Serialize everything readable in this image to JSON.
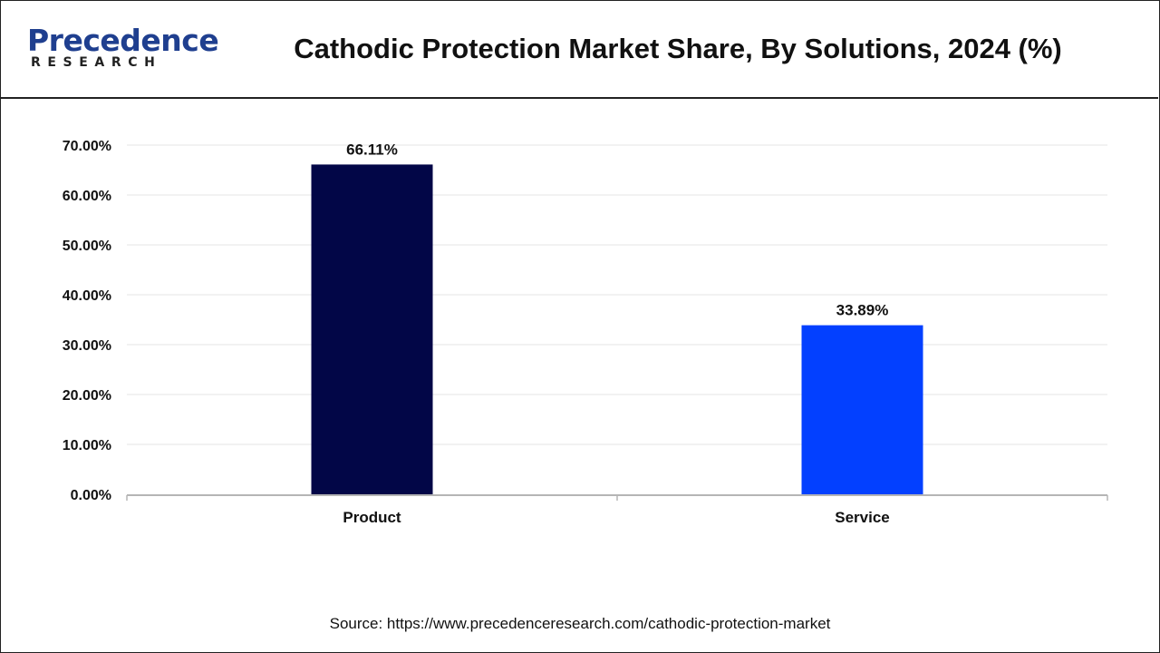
{
  "brand": {
    "name": "Precedence",
    "sub": "RESEARCH",
    "name_color": "#1f3f8f"
  },
  "source_text": "Source: https://www.precedenceresearch.com/cathodic-protection-market",
  "chart_data": {
    "type": "bar",
    "title": "Cathodic Protection Market Share, By Solutions, 2024 (%)",
    "categories": [
      "Product",
      "Service"
    ],
    "values": [
      66.11,
      33.89
    ],
    "value_labels": [
      "66.11%",
      "33.89%"
    ],
    "colors": [
      "#020647",
      "#0340ff"
    ],
    "ylim": [
      0,
      70
    ],
    "yticks": [
      0,
      10,
      20,
      30,
      40,
      50,
      60,
      70
    ],
    "ytick_labels": [
      "0.00%",
      "10.00%",
      "20.00%",
      "30.00%",
      "40.00%",
      "50.00%",
      "60.00%",
      "70.00%"
    ],
    "xlabel": "",
    "ylabel": "",
    "grid": true,
    "legend": "none"
  }
}
